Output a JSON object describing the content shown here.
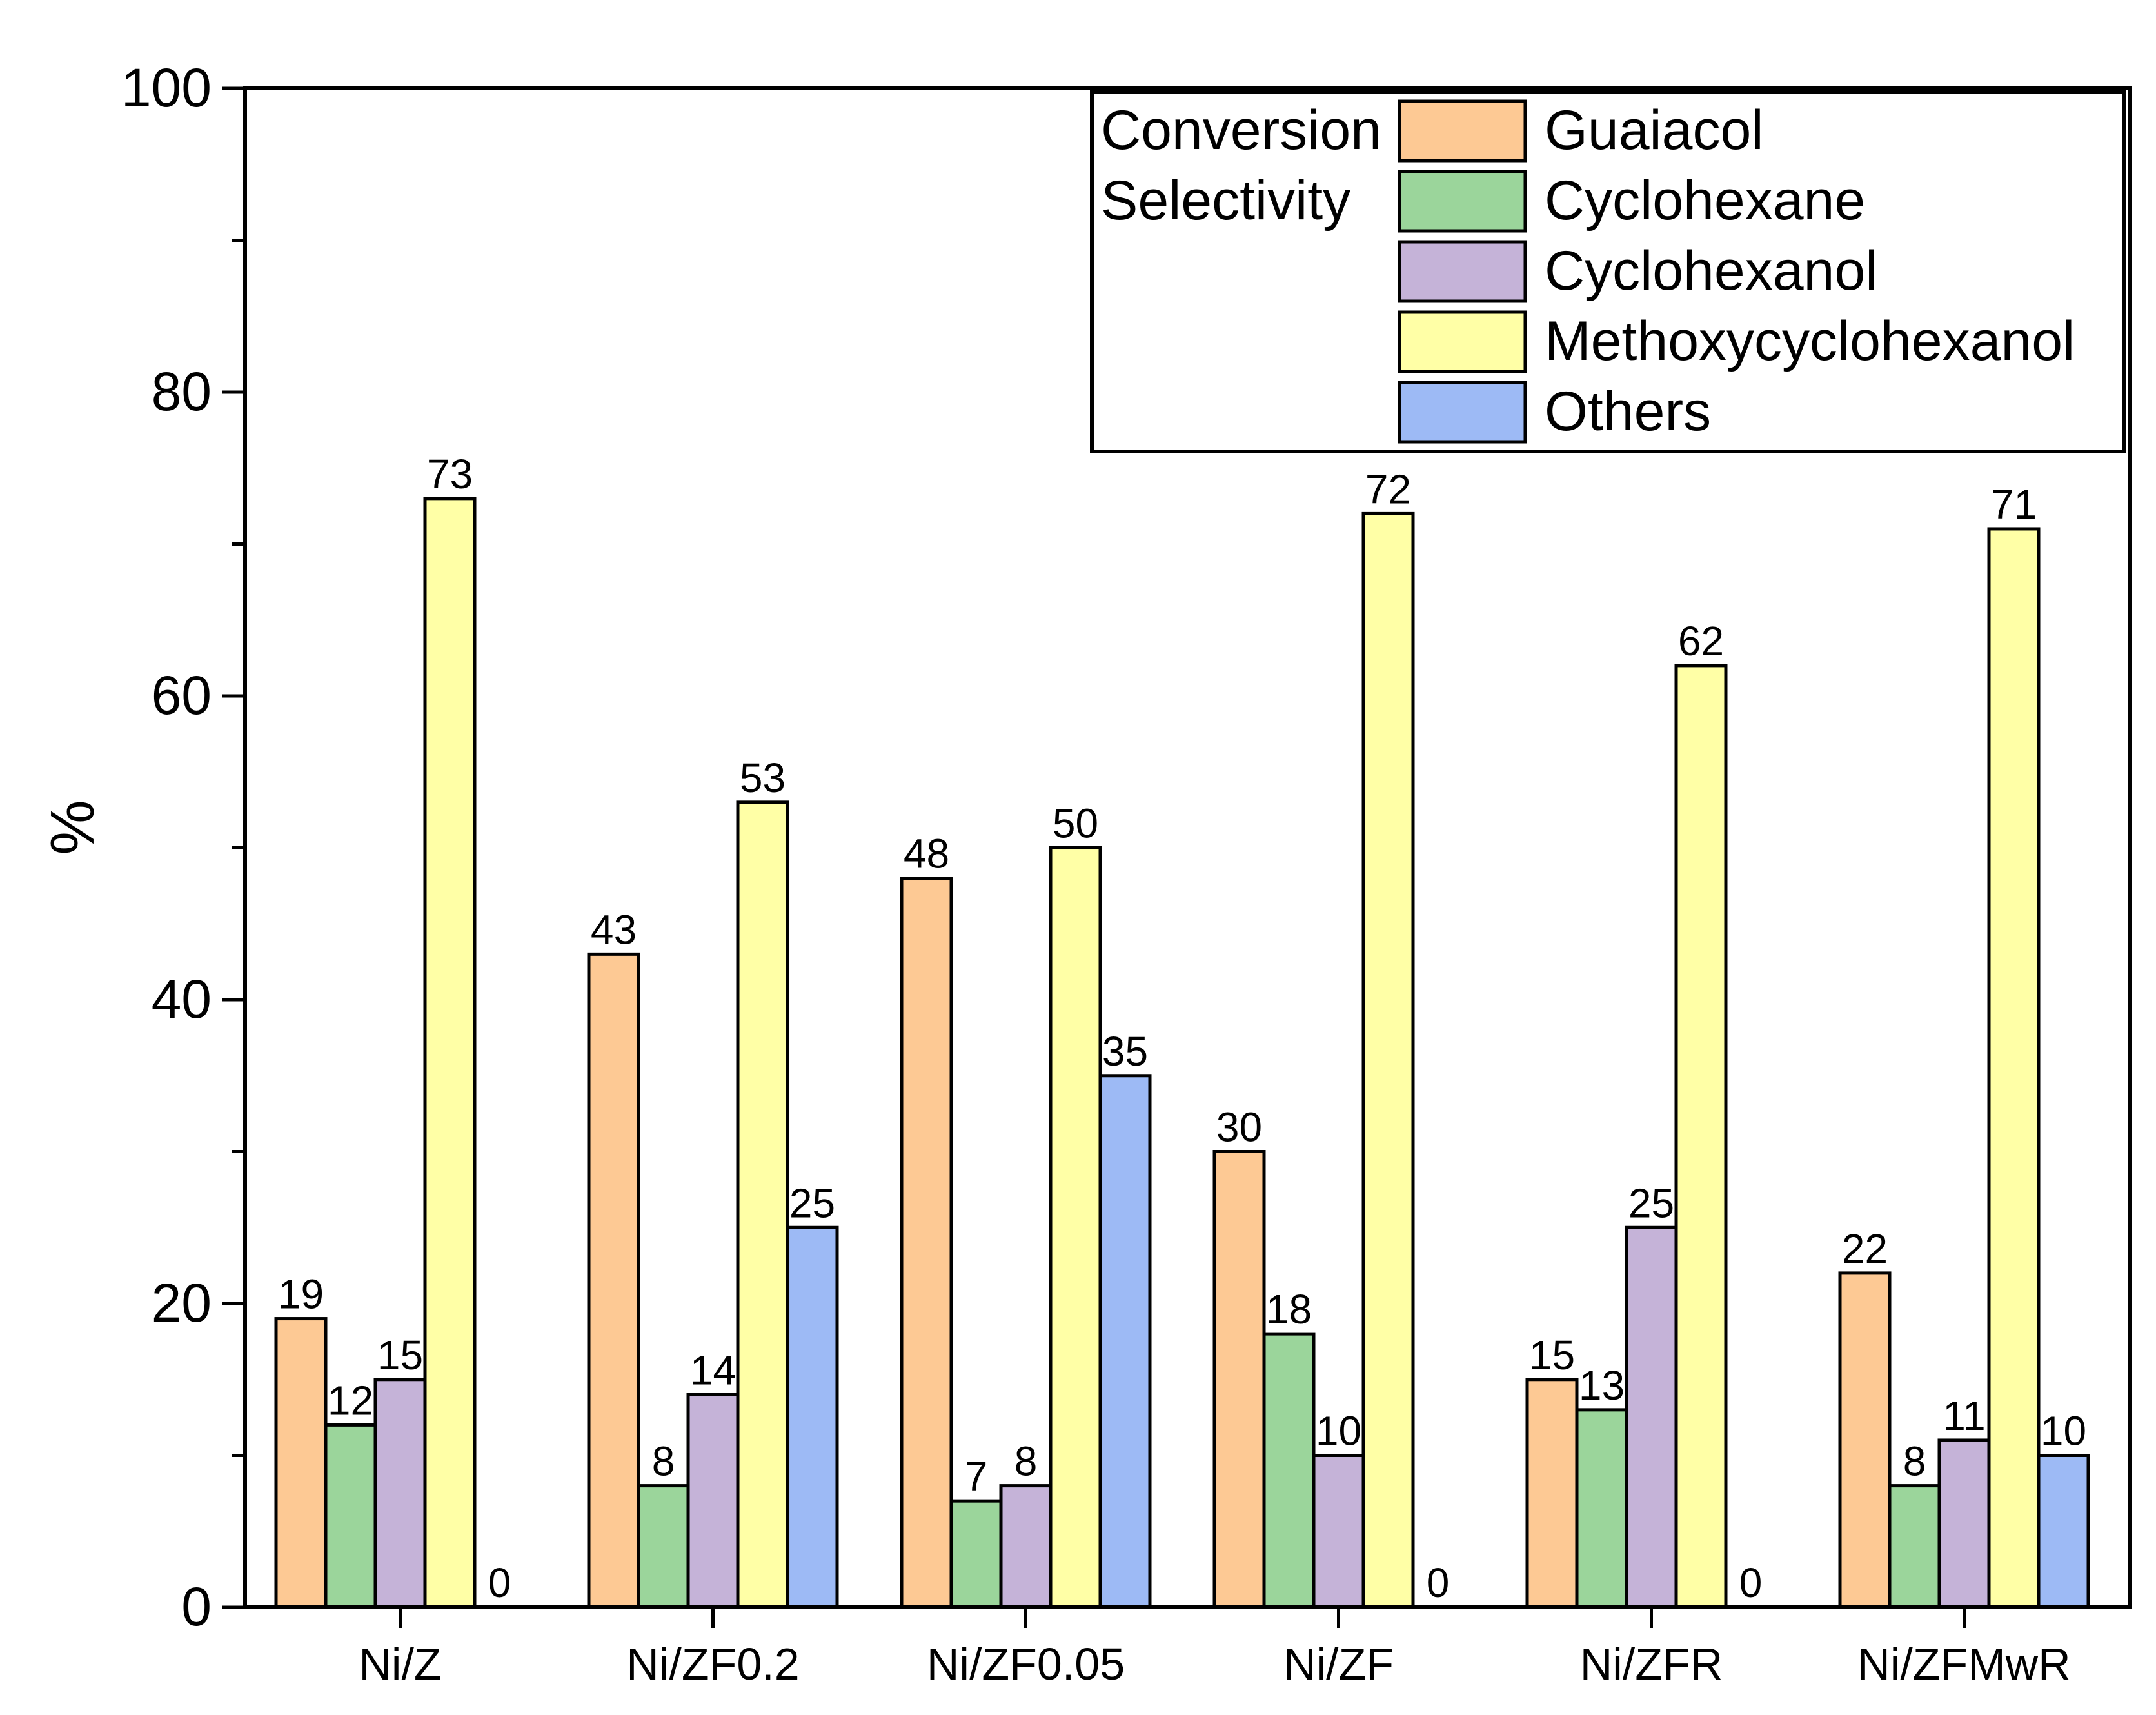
{
  "chart_data": {
    "type": "bar",
    "title": "",
    "xlabel": "",
    "ylabel": "%",
    "ylim": [
      0,
      100
    ],
    "yticks": [
      0,
      20,
      40,
      60,
      80,
      100
    ],
    "grid": false,
    "legend_position": "top-right",
    "legend_group_labels": {
      "conversion": "Conversion",
      "selectivity": "Selectivity"
    },
    "categories": [
      "Ni/Z",
      "Ni/ZF0.2",
      "Ni/ZF0.05",
      "Ni/ZF",
      "Ni/ZFR",
      "Ni/ZFMwR"
    ],
    "series": [
      {
        "name": "Guaiacol",
        "group": "Conversion",
        "color": "#FDC994",
        "values": [
          19,
          43,
          48,
          30,
          15,
          22
        ]
      },
      {
        "name": "Cyclohexane",
        "group": "Selectivity",
        "color": "#9BD59B",
        "values": [
          12,
          8,
          7,
          18,
          13,
          8
        ]
      },
      {
        "name": "Cyclohexanol",
        "group": "Selectivity",
        "color": "#C5B3D8",
        "values": [
          15,
          14,
          8,
          10,
          25,
          11
        ]
      },
      {
        "name": "Methoxycyclohexanol",
        "group": "Selectivity",
        "color": "#FFFFA6",
        "values": [
          73,
          53,
          50,
          72,
          62,
          71
        ]
      },
      {
        "name": "Others",
        "group": "Selectivity",
        "color": "#9DBAF5",
        "values": [
          0,
          25,
          35,
          0,
          0,
          10
        ]
      }
    ]
  }
}
